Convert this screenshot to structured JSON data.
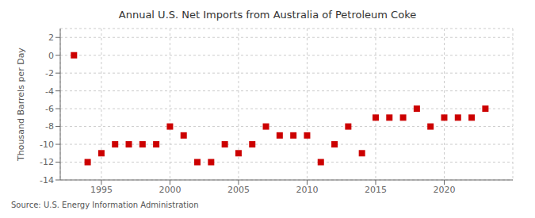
{
  "chart_data": {
    "type": "scatter",
    "title": "Annual U.S. Net Imports from Australia of Petroleum Coke",
    "y_label": "Thousand Barrels per Day",
    "annotations": [
      "Source: U.S. Energy Information Administration"
    ],
    "x": [
      1993,
      1994,
      1995,
      1996,
      1997,
      1998,
      1999,
      2000,
      2001,
      2002,
      2003,
      2004,
      2005,
      2006,
      2007,
      2008,
      2009,
      2010,
      2011,
      2012,
      2013,
      2014,
      2015,
      2016,
      2017,
      2018,
      2019,
      2020,
      2021,
      2022,
      2023
    ],
    "values": [
      0,
      -12,
      -11,
      -10,
      -10,
      -10,
      -10,
      -8,
      -9,
      -12,
      -12,
      -10,
      -11,
      -10,
      -8,
      -9,
      -9,
      -9,
      -12,
      -10,
      -8,
      -11,
      -7,
      -7,
      -7,
      -6,
      -8,
      -7,
      -7,
      -7,
      -6
    ],
    "color": "#cc0000",
    "marker": "square",
    "xlim": [
      1992,
      2025
    ],
    "xticks": [
      1995,
      2000,
      2005,
      2010,
      2015,
      2020
    ],
    "ylim": [
      -14,
      3
    ],
    "yticks": [
      2,
      0,
      -2,
      -4,
      -6,
      -8,
      -10,
      -12,
      -14
    ],
    "grid": true
  }
}
